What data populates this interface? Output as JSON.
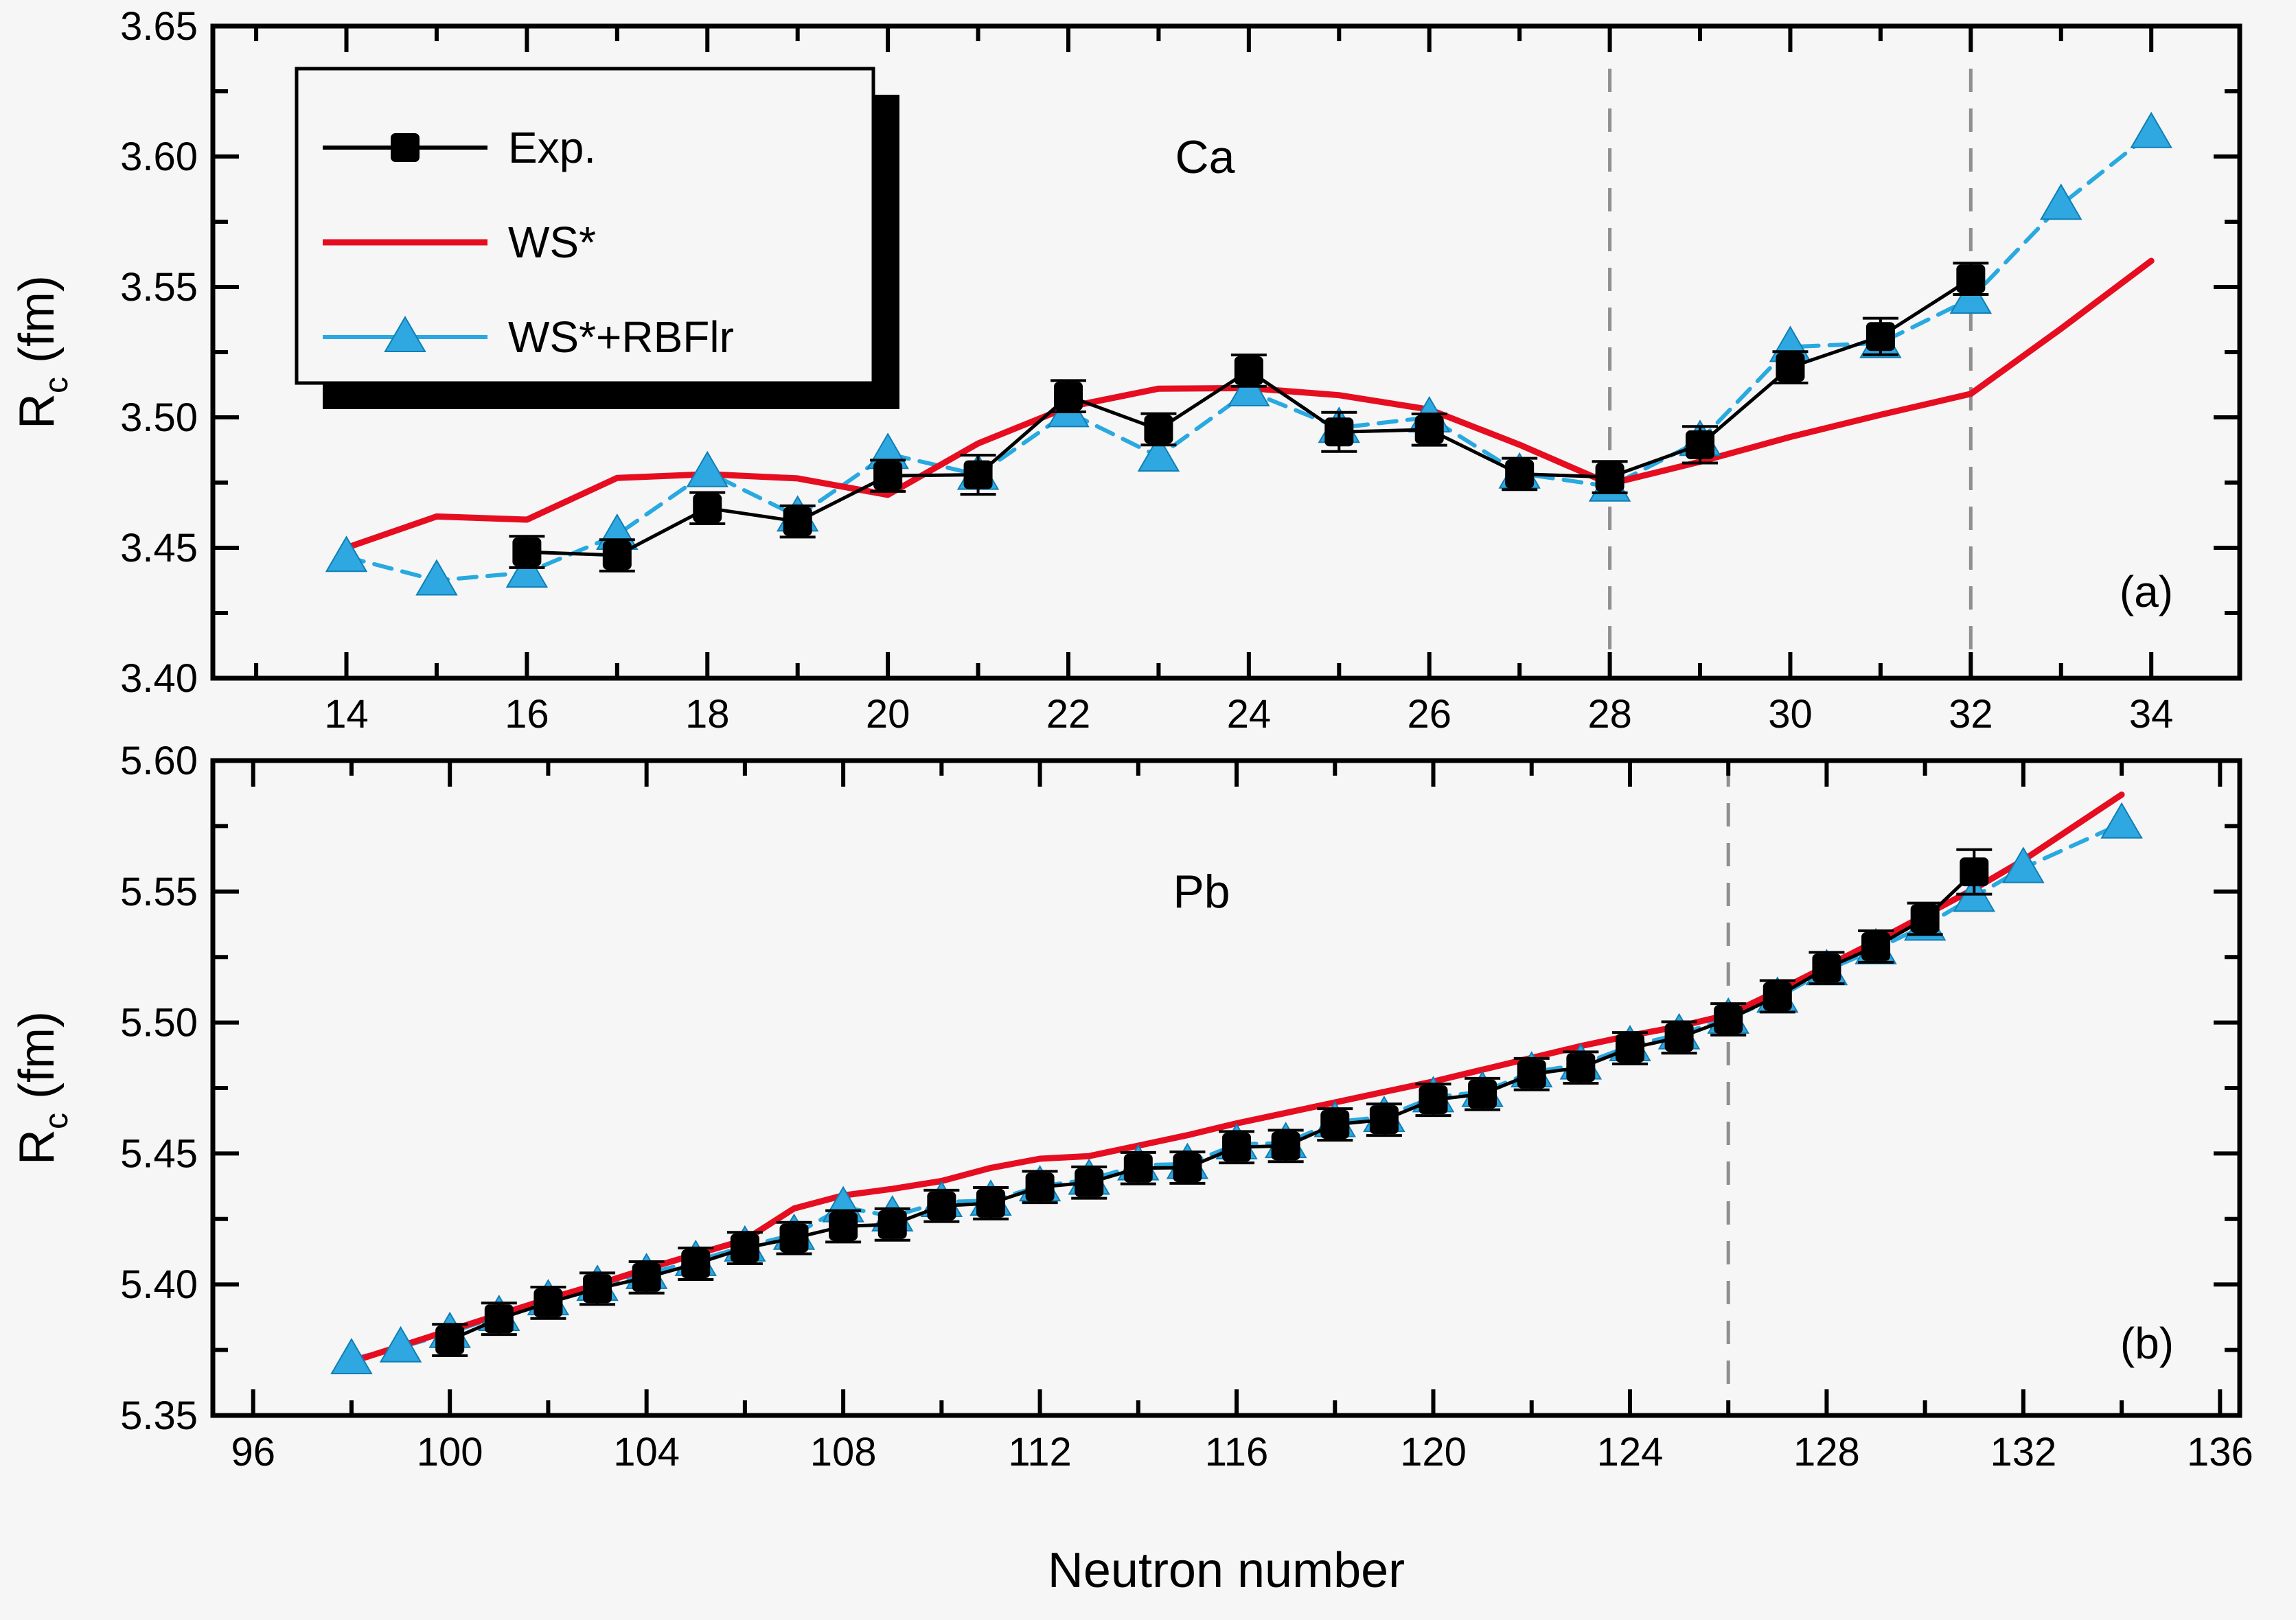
{
  "figure": {
    "xlabel": "Neutron number",
    "ylabel": "Rc (fm)",
    "ylabel_main": "R",
    "ylabel_sub": "c",
    "ylabel_rest": " (fm)",
    "background": "#f6f6f7",
    "axis_color": "#000000"
  },
  "legend": {
    "position": "upper left",
    "entries": [
      {
        "label": "Exp.",
        "color": "#000000",
        "marker": "square",
        "line": "solid"
      },
      {
        "label": "WS*",
        "color": "#e60d20",
        "marker": null,
        "line": "solid"
      },
      {
        "label": "WS*+RBFlr",
        "color": "#29a9e0",
        "marker": "triangle",
        "line": "dashed"
      }
    ]
  },
  "chart_data": [
    {
      "type": "line",
      "panel": "a",
      "title": "Ca",
      "tag": "(a)",
      "xlabel": "Neutron number",
      "ylabel": "Rc (fm)",
      "grid": false,
      "x_range": [
        12.52,
        34.98
      ],
      "y_range": [
        3.4,
        3.65
      ],
      "x_major_ticks": [
        14,
        16,
        18,
        20,
        22,
        24,
        26,
        28,
        30,
        32,
        34
      ],
      "x_major_labels": [
        "14",
        "16",
        "18",
        "20",
        "22",
        "24",
        "26",
        "28",
        "30",
        "32",
        "34"
      ],
      "x_minor_ticks": [
        13,
        15,
        17,
        19,
        21,
        23,
        25,
        27,
        29,
        31,
        33
      ],
      "y_major_ticks": [
        3.4,
        3.45,
        3.5,
        3.55,
        3.6,
        3.65
      ],
      "y_major_labels": [
        "3.40",
        "3.45",
        "3.50",
        "3.55",
        "3.60",
        "3.65"
      ],
      "y_minor_ticks": [
        3.425,
        3.475,
        3.525,
        3.575,
        3.625
      ],
      "ref_lines_x": [
        28,
        32
      ],
      "series": [
        {
          "name": "Exp.",
          "color": "#000000",
          "line_width": 5,
          "line_dash": null,
          "marker": "square",
          "marker_color": "#000000",
          "x": [
            16,
            17,
            18,
            19,
            20,
            21,
            22,
            23,
            24,
            25,
            26,
            27,
            28,
            29,
            30,
            31,
            32
          ],
          "y": [
            3.4484,
            3.4471,
            3.4652,
            3.4601,
            3.4776,
            3.478,
            3.5081,
            3.4954,
            3.5179,
            3.4944,
            3.4953,
            3.4783,
            3.4771,
            3.4895,
            3.5192,
            3.531,
            3.5531
          ],
          "y_err": [
            0.006,
            0.006,
            0.006,
            0.006,
            0.006,
            0.0075,
            0.006,
            0.006,
            0.006,
            0.0075,
            0.006,
            0.006,
            0.006,
            0.007,
            0.006,
            0.007,
            0.006
          ]
        },
        {
          "name": "WS*",
          "color": "#e60d20",
          "line_width": 9,
          "line_dash": null,
          "marker": null,
          "x": [
            14,
            15,
            16,
            17,
            18,
            19,
            20,
            21,
            22,
            23,
            24,
            25,
            26,
            27,
            28,
            29,
            30,
            31,
            32,
            33,
            34
          ],
          "y": [
            3.45,
            3.462,
            3.4608,
            3.4768,
            3.4782,
            3.4766,
            3.4703,
            3.49,
            3.504,
            3.511,
            3.5112,
            3.5085,
            3.503,
            3.4895,
            3.4745,
            3.483,
            3.4925,
            3.501,
            3.509,
            3.534,
            3.56
          ]
        },
        {
          "name": "WS*+RBFlr",
          "color": "#29a9e0",
          "line_width": 6,
          "line_dash": "26 16",
          "marker": "triangle",
          "marker_color": "#2fa8e1",
          "x": [
            14,
            15,
            16,
            17,
            18,
            19,
            20,
            21,
            22,
            23,
            24,
            25,
            26,
            27,
            28,
            29,
            30,
            31,
            32,
            33,
            34
          ],
          "y": [
            3.4465,
            3.4375,
            3.4405,
            3.455,
            3.479,
            3.462,
            3.486,
            3.478,
            3.502,
            3.485,
            3.51,
            3.496,
            3.5,
            3.4785,
            3.4735,
            3.491,
            3.527,
            3.5285,
            3.5455,
            3.5815,
            3.609
          ]
        }
      ]
    },
    {
      "type": "line",
      "panel": "b",
      "title": "Pb",
      "tag": "(b)",
      "xlabel": "Neutron number",
      "ylabel": "Rc (fm)",
      "grid": false,
      "x_range": [
        95.18,
        136.4
      ],
      "y_range": [
        5.35,
        5.6
      ],
      "x_major_ticks": [
        96,
        100,
        104,
        108,
        112,
        116,
        120,
        124,
        128,
        132,
        136
      ],
      "x_major_labels": [
        "96",
        "100",
        "104",
        "108",
        "112",
        "116",
        "120",
        "124",
        "128",
        "132",
        "136"
      ],
      "x_minor_ticks": [
        98,
        102,
        106,
        110,
        114,
        118,
        122,
        126,
        130,
        134
      ],
      "y_major_ticks": [
        5.35,
        5.4,
        5.45,
        5.5,
        5.55,
        5.6
      ],
      "y_major_labels": [
        "5.35",
        "5.40",
        "5.45",
        "5.50",
        "5.55",
        "5.60"
      ],
      "y_minor_ticks": [
        5.375,
        5.425,
        5.475,
        5.525,
        5.575
      ],
      "ref_lines_x": [
        126
      ],
      "series": [
        {
          "name": "Exp.",
          "color": "#000000",
          "line_width": 5,
          "line_dash": null,
          "marker": "square",
          "marker_color": "#000000",
          "x": [
            100,
            101,
            102,
            103,
            104,
            105,
            106,
            107,
            108,
            109,
            110,
            111,
            112,
            113,
            114,
            115,
            116,
            117,
            118,
            119,
            120,
            121,
            122,
            123,
            124,
            125,
            126,
            127,
            128,
            129,
            130,
            131
          ],
          "y": [
            5.3788,
            5.3869,
            5.393,
            5.3984,
            5.4027,
            5.4079,
            5.4139,
            5.4177,
            5.4222,
            5.4229,
            5.43,
            5.431,
            5.4372,
            5.4389,
            5.4444,
            5.4446,
            5.4524,
            5.4529,
            5.4611,
            5.4629,
            5.4705,
            5.4727,
            5.4803,
            5.4828,
            5.4902,
            5.4943,
            5.5012,
            5.51,
            5.5208,
            5.529,
            5.5396,
            5.5575
          ],
          "y_err": [
            0.006,
            0.006,
            0.006,
            0.006,
            0.006,
            0.006,
            0.006,
            0.006,
            0.006,
            0.006,
            0.006,
            0.006,
            0.006,
            0.006,
            0.006,
            0.006,
            0.006,
            0.006,
            0.006,
            0.006,
            0.006,
            0.006,
            0.006,
            0.006,
            0.006,
            0.006,
            0.006,
            0.006,
            0.006,
            0.006,
            0.006,
            0.0085
          ]
        },
        {
          "name": "WS*",
          "color": "#e60d20",
          "line_width": 9,
          "line_dash": null,
          "marker": null,
          "x": [
            98,
            99,
            100,
            101,
            102,
            103,
            104,
            105,
            106,
            107,
            108,
            109,
            110,
            111,
            112,
            113,
            114,
            115,
            116,
            117,
            118,
            119,
            120,
            121,
            122,
            123,
            124,
            125,
            126,
            127,
            128,
            129,
            130,
            131,
            132,
            133,
            134
          ],
          "y": [
            5.3705,
            5.3765,
            5.3825,
            5.3885,
            5.3945,
            5.4,
            5.406,
            5.4115,
            5.417,
            5.429,
            5.434,
            5.4365,
            5.4395,
            5.4445,
            5.448,
            5.449,
            5.453,
            5.457,
            5.4615,
            5.4655,
            5.4695,
            5.4735,
            5.4775,
            5.482,
            5.4865,
            5.491,
            5.495,
            5.4985,
            5.503,
            5.512,
            5.5215,
            5.531,
            5.541,
            5.551,
            5.562,
            5.5745,
            5.587
          ]
        },
        {
          "name": "WS*+RBFlr",
          "color": "#29a9e0",
          "line_width": 6,
          "line_dash": "26 16",
          "marker": "triangle",
          "marker_color": "#2fa8e1",
          "x": [
            98,
            99,
            100,
            101,
            102,
            103,
            104,
            105,
            106,
            107,
            108,
            109,
            110,
            111,
            112,
            113,
            114,
            115,
            116,
            117,
            118,
            119,
            120,
            121,
            122,
            123,
            124,
            125,
            126,
            127,
            128,
            129,
            130,
            131,
            132,
            134
          ],
          "y": [
            5.3715,
            5.376,
            5.3815,
            5.388,
            5.394,
            5.3995,
            5.404,
            5.409,
            5.4145,
            5.419,
            5.4295,
            5.426,
            5.4315,
            5.432,
            5.4375,
            5.44,
            5.4455,
            5.446,
            5.4535,
            5.454,
            5.462,
            5.464,
            5.4715,
            5.4735,
            5.481,
            5.484,
            5.491,
            5.4955,
            5.5015,
            5.5095,
            5.52,
            5.528,
            5.537,
            5.548,
            5.559,
            5.576
          ]
        }
      ]
    }
  ]
}
